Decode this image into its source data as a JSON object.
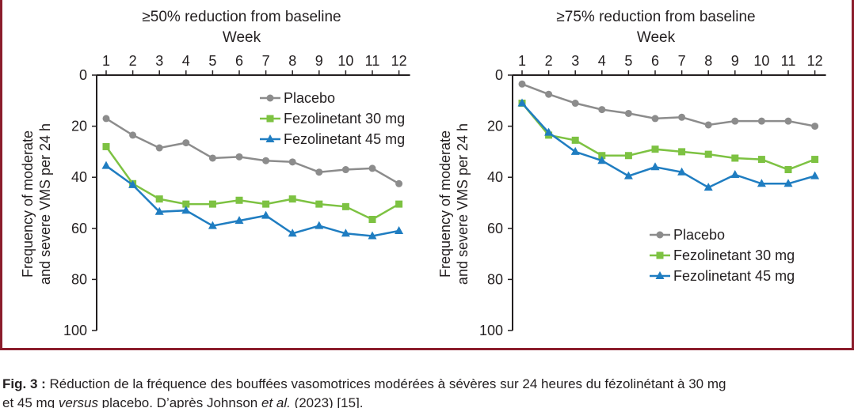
{
  "colors": {
    "frame": "#8b1d2c",
    "placebo": "#8c8c8c",
    "fezo30": "#7dc242",
    "fezo45": "#1f7dc1",
    "axis": "#231f20"
  },
  "chart_data": [
    {
      "type": "line",
      "title": "≥50% reduction from baseline",
      "xlabel": "Week",
      "ylabel_line1": "Frequency of moderate",
      "ylabel_line2": "and severe VMS per 24 h",
      "x": [
        1,
        2,
        3,
        4,
        5,
        6,
        7,
        8,
        9,
        10,
        11,
        12
      ],
      "ylim": [
        0,
        100
      ],
      "yticks": [
        0,
        20,
        40,
        60,
        80,
        100
      ],
      "yaxis_inverted": true,
      "legend_position": "top-right",
      "series": [
        {
          "name": "Placebo",
          "marker": "circle",
          "values": [
            17,
            23.5,
            28.5,
            26.5,
            32.5,
            32,
            33.5,
            34,
            38,
            37,
            36.5,
            42.5
          ]
        },
        {
          "name": "Fezolinetant 30 mg",
          "marker": "square",
          "values": [
            28,
            42.5,
            48.5,
            50.5,
            50.5,
            49,
            50.5,
            48.5,
            50.5,
            51.5,
            56.5,
            50.5
          ]
        },
        {
          "name": "Fezolinetant 45 mg",
          "marker": "triangle",
          "values": [
            35.5,
            43,
            53.5,
            53,
            59,
            57,
            55,
            62,
            59,
            62,
            63,
            61
          ]
        }
      ]
    },
    {
      "type": "line",
      "title": "≥75% reduction from baseline",
      "xlabel": "Week",
      "ylabel_line1": "Frequency of moderate",
      "ylabel_line2": "and severe VMS per 24 h",
      "x": [
        1,
        2,
        3,
        4,
        5,
        6,
        7,
        8,
        9,
        10,
        11,
        12
      ],
      "ylim": [
        0,
        100
      ],
      "yticks": [
        0,
        20,
        40,
        60,
        80,
        100
      ],
      "yaxis_inverted": true,
      "legend_position": "bottom-right",
      "series": [
        {
          "name": "Placebo",
          "marker": "circle",
          "values": [
            3.5,
            7.5,
            11,
            13.5,
            15,
            17,
            16.5,
            19.5,
            18,
            18,
            18,
            20
          ]
        },
        {
          "name": "Fezolinetant 30 mg",
          "marker": "square",
          "values": [
            11,
            23.5,
            25.5,
            31.5,
            31.5,
            29,
            30,
            31,
            32.5,
            33,
            37,
            33
          ]
        },
        {
          "name": "Fezolinetant 45 mg",
          "marker": "triangle",
          "values": [
            11,
            22.5,
            30,
            33.5,
            39.5,
            36,
            38,
            44,
            39,
            42.5,
            42.5,
            39.5
          ]
        }
      ]
    }
  ],
  "caption": {
    "label": "Fig. 3 :",
    "line1": " Réduction de la fréquence des bouffées vasomotrices modérées à sévères sur 24 heures du fézolinétant à 30 mg",
    "line2_a": "et 45 mg ",
    "line2_italic": "versus",
    "line2_b": " placebo. D’après Johnson ",
    "line2_etal": "et al.",
    "line2_c": " (2023) [15]."
  }
}
